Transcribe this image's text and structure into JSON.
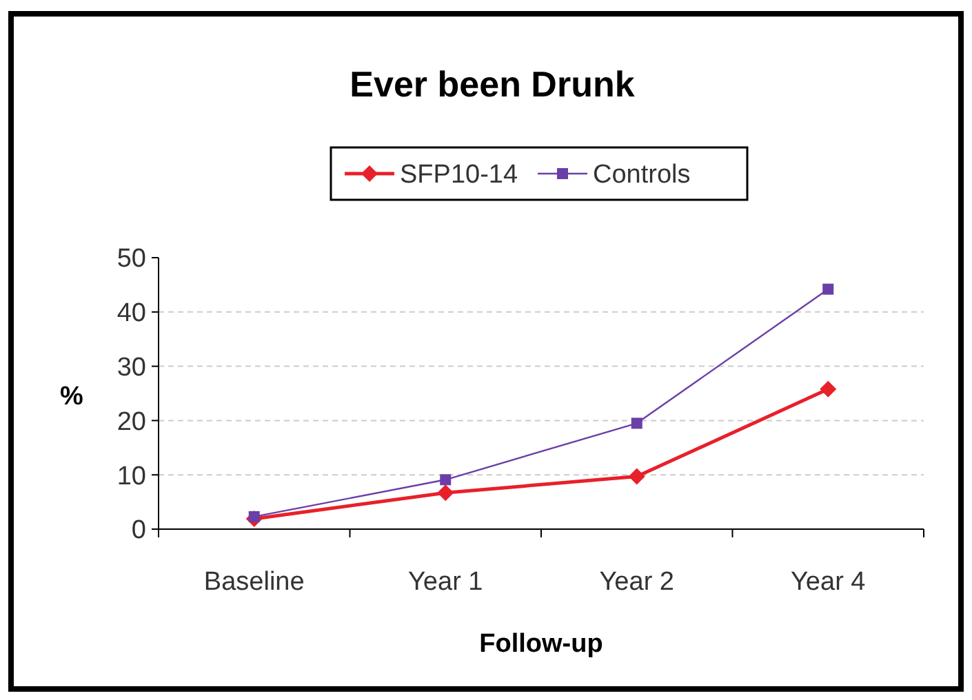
{
  "chart_data": {
    "type": "line",
    "title": "Ever been Drunk",
    "xlabel": "Follow-up",
    "ylabel": "%",
    "categories": [
      "Baseline",
      "Year 1",
      "Year 2",
      "Year 4"
    ],
    "series": [
      {
        "name": "SFP10-14",
        "color": "#e8202a",
        "marker": "diamond",
        "values": [
          1.9,
          6.7,
          9.7,
          25.8
        ]
      },
      {
        "name": "Controls",
        "color": "#6a3fa8",
        "marker": "square",
        "values": [
          2.3,
          9.1,
          19.5,
          44.2
        ]
      }
    ],
    "ylim": [
      0,
      50
    ],
    "yticks": [
      0,
      10,
      20,
      30,
      40,
      50
    ],
    "grid": "y",
    "legend": "top"
  }
}
